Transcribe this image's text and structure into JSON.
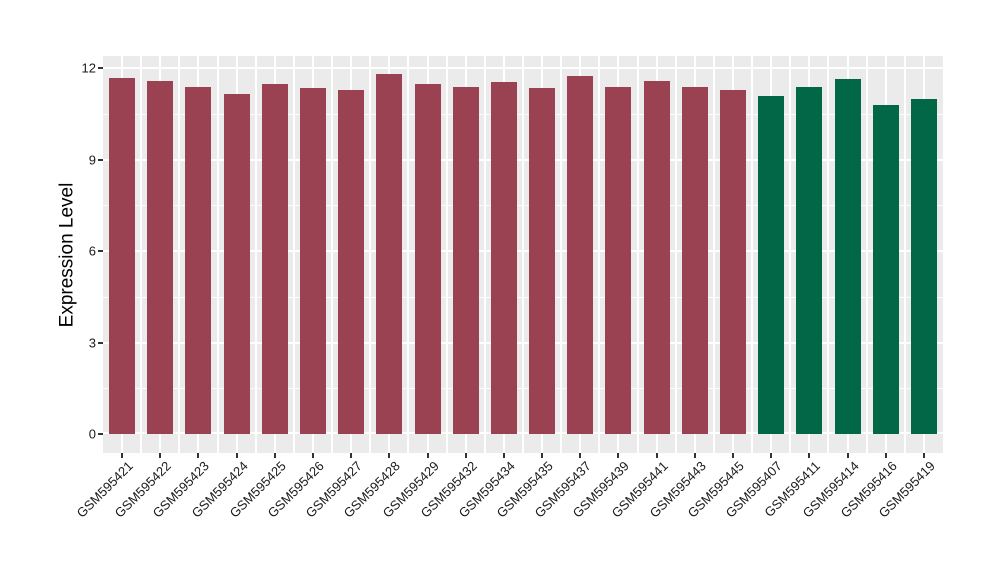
{
  "chart_data": {
    "type": "bar",
    "title": "",
    "xlabel": "",
    "ylabel": "Expression Level",
    "ylim": [
      0,
      12.4
    ],
    "yticks": [
      0,
      3,
      6,
      9,
      12
    ],
    "yticks_minor": [
      1.5,
      4.5,
      7.5,
      10.5
    ],
    "grid": "on",
    "legend": "none",
    "panel_bg": "#EBEBEB",
    "grid_color": "#FFFFFF",
    "axis_text_color": "#1A1A1A",
    "tick_mark_color": "#333333",
    "group_colors": {
      "1": "#9A4152",
      "2": "#016747"
    },
    "bars": [
      {
        "label": "GSM595421",
        "value": 11.7,
        "group": 1
      },
      {
        "label": "GSM595422",
        "value": 11.6,
        "group": 1
      },
      {
        "label": "GSM595423",
        "value": 11.4,
        "group": 1
      },
      {
        "label": "GSM595424",
        "value": 11.15,
        "group": 1
      },
      {
        "label": "GSM595425",
        "value": 11.5,
        "group": 1
      },
      {
        "label": "GSM595426",
        "value": 11.35,
        "group": 1
      },
      {
        "label": "GSM595427",
        "value": 11.3,
        "group": 1
      },
      {
        "label": "GSM595428",
        "value": 11.8,
        "group": 1
      },
      {
        "label": "GSM595429",
        "value": 11.5,
        "group": 1
      },
      {
        "label": "GSM595432",
        "value": 11.4,
        "group": 1
      },
      {
        "label": "GSM595434",
        "value": 11.55,
        "group": 1
      },
      {
        "label": "GSM595435",
        "value": 11.35,
        "group": 1
      },
      {
        "label": "GSM595437",
        "value": 11.75,
        "group": 1
      },
      {
        "label": "GSM595439",
        "value": 11.4,
        "group": 1
      },
      {
        "label": "GSM595441",
        "value": 11.6,
        "group": 1
      },
      {
        "label": "GSM595443",
        "value": 11.4,
        "group": 1
      },
      {
        "label": "GSM595445",
        "value": 11.3,
        "group": 1
      },
      {
        "label": "GSM595407",
        "value": 11.1,
        "group": 2
      },
      {
        "label": "GSM595411",
        "value": 11.4,
        "group": 2
      },
      {
        "label": "GSM595414",
        "value": 11.65,
        "group": 2
      },
      {
        "label": "GSM595416",
        "value": 10.8,
        "group": 2
      },
      {
        "label": "GSM595419",
        "value": 11.0,
        "group": 2
      }
    ]
  }
}
